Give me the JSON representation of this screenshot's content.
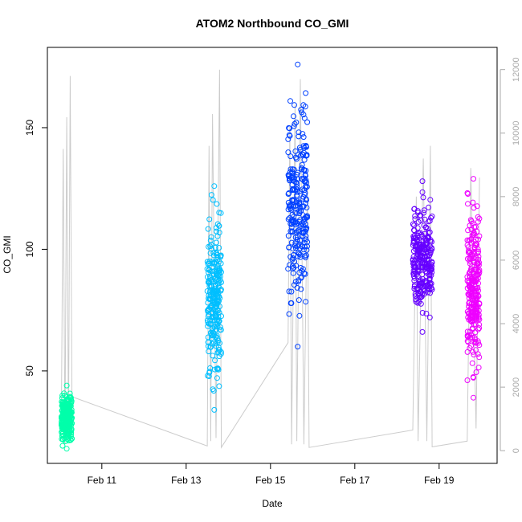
{
  "chart_data": {
    "type": "scatter",
    "title": "ATOM2 Northbound CO_GMI",
    "xlabel": "Date",
    "ylabel": "CO_GMI",
    "x_axis": {
      "type": "date",
      "range": [
        "2017-02-09T17:00",
        "2017-02-20T09:00"
      ],
      "ticks": [
        {
          "date": "2017-02-11",
          "label": "Feb 11"
        },
        {
          "date": "2017-02-13",
          "label": "Feb 13"
        },
        {
          "date": "2017-02-15",
          "label": "Feb 15"
        },
        {
          "date": "2017-02-17",
          "label": "Feb 17"
        },
        {
          "date": "2017-02-19",
          "label": "Feb 19"
        }
      ]
    },
    "y_axis": {
      "range": [
        12,
        183
      ],
      "ticks": [
        50,
        100,
        150
      ]
    },
    "y2_axis": {
      "range": [
        -400,
        12700
      ],
      "ticks": [
        0,
        2000,
        4000,
        6000,
        8000,
        10000,
        12000
      ],
      "color": "#aaaaaa"
    },
    "grid": false,
    "legend": "none",
    "series": [
      {
        "color": "#00ffaa",
        "x_range": [
          "2017-02-10T01:00",
          "2017-02-10T07:00"
        ],
        "y_range": [
          18,
          44
        ]
      },
      {
        "color": "#00bfff",
        "x_range": [
          "2017-02-13T12:00",
          "2017-02-13T20:00"
        ],
        "y_range": [
          34,
          126
        ]
      },
      {
        "color": "#0040ff",
        "x_range": [
          "2017-02-15T10:00",
          "2017-02-15T21:00"
        ],
        "y_range": [
          60,
          176
        ]
      },
      {
        "color": "#6600ff",
        "x_range": [
          "2017-02-18T09:00",
          "2017-02-18T20:00"
        ],
        "y_range": [
          66,
          128
        ]
      },
      {
        "color": "#ee00ff",
        "x_range": [
          "2017-02-19T16:00",
          "2017-02-19T23:00"
        ],
        "y_range": [
          39,
          129
        ]
      }
    ],
    "altitude_series": {
      "axis": "y2",
      "color": "#cccccc",
      "points": [
        [
          "2017-02-10T01:00",
          1300
        ],
        [
          "2017-02-10T02:00",
          9500
        ],
        [
          "2017-02-10T03:00",
          200
        ],
        [
          "2017-02-10T04:00",
          10500
        ],
        [
          "2017-02-10T05:00",
          500
        ],
        [
          "2017-02-10T06:00",
          11800
        ],
        [
          "2017-02-10T07:00",
          1700
        ],
        [
          "2017-02-13T12:00",
          150
        ],
        [
          "2017-02-13T13:00",
          9600
        ],
        [
          "2017-02-13T14:00",
          300
        ],
        [
          "2017-02-13T15:00",
          10600
        ],
        [
          "2017-02-13T17:00",
          400
        ],
        [
          "2017-02-13T19:00",
          12000
        ],
        [
          "2017-02-13T20:00",
          100
        ],
        [
          "2017-02-15T10:00",
          3400
        ],
        [
          "2017-02-15T11:00",
          10200
        ],
        [
          "2017-02-15T12:00",
          200
        ],
        [
          "2017-02-15T14:00",
          10900
        ],
        [
          "2017-02-15T15:00",
          300
        ],
        [
          "2017-02-15T17:00",
          11700
        ],
        [
          "2017-02-15T19:00",
          200
        ],
        [
          "2017-02-15T21:00",
          8500
        ],
        [
          "2017-02-15T22:00",
          100
        ],
        [
          "2017-02-18T09:00",
          650
        ],
        [
          "2017-02-18T11:00",
          8000
        ],
        [
          "2017-02-18T12:00",
          300
        ],
        [
          "2017-02-18T15:00",
          9200
        ],
        [
          "2017-02-18T17:00",
          300
        ],
        [
          "2017-02-18T19:00",
          9600
        ],
        [
          "2017-02-18T20:00",
          120
        ],
        [
          "2017-02-19T16:00",
          300
        ],
        [
          "2017-02-19T18:00",
          8900
        ],
        [
          "2017-02-19T21:00",
          700
        ],
        [
          "2017-02-19T23:00",
          8600
        ]
      ]
    }
  }
}
